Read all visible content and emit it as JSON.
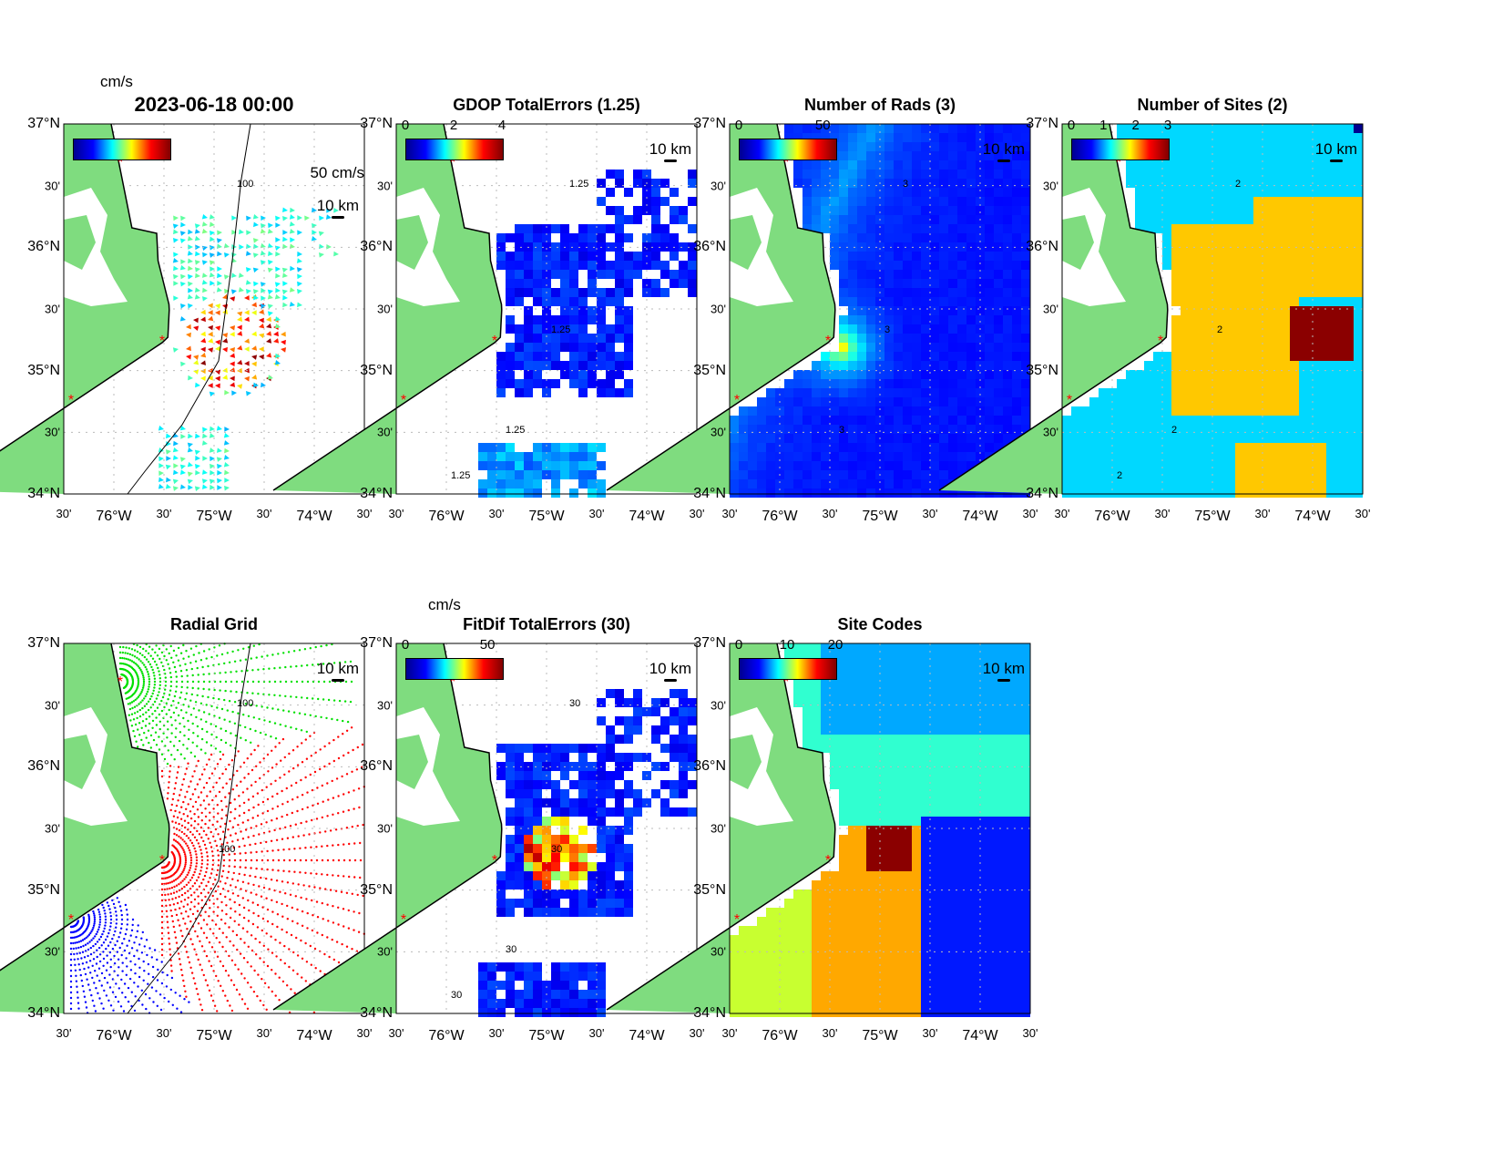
{
  "figure_title": "2023-06-18 00:00",
  "axes": {
    "y_labels": [
      "37°N",
      "30'",
      "36°N",
      "30'",
      "35°N",
      "30'",
      "34°N"
    ],
    "x_labels": [
      "30'",
      "76°W",
      "30'",
      "75°W",
      "30'",
      "74°W",
      "30'"
    ]
  },
  "scale_label": "10 km",
  "panels": [
    {
      "id": "totals",
      "title": "2023-06-18 00:00",
      "unit": "cm/s",
      "vector_scale": "50 cm/s",
      "colorbar_ticks": [],
      "contour_labels": [
        "100"
      ]
    },
    {
      "id": "gdop",
      "title": "GDOP TotalErrors (1.25)",
      "colorbar_ticks": [
        "0",
        "2",
        "4"
      ],
      "contour_labels": [
        "1.25",
        "1.25",
        "1.25",
        "1.25"
      ]
    },
    {
      "id": "nrads",
      "title": "Number of Rads (3)",
      "colorbar_ticks": [
        "0",
        "50"
      ],
      "contour_labels": [
        "3",
        "3",
        "3"
      ]
    },
    {
      "id": "nsites",
      "title": "Number of Sites (2)",
      "colorbar_ticks": [
        "0",
        "1",
        "2",
        "3"
      ],
      "contour_labels": [
        "2",
        "2",
        "2",
        "2"
      ]
    },
    {
      "id": "radgrid",
      "title": "Radial Grid",
      "colorbar_ticks": [],
      "contour_labels": [
        "100",
        "100"
      ]
    },
    {
      "id": "fitdif",
      "title": "FitDif TotalErrors (30)",
      "unit": "cm/s",
      "colorbar_ticks": [
        "0",
        "50"
      ],
      "contour_labels": [
        "30",
        "30",
        "30",
        "30"
      ]
    },
    {
      "id": "sitecodes",
      "title": "Site Codes",
      "colorbar_ticks": [
        "0",
        "10",
        "20"
      ],
      "contour_labels": []
    }
  ],
  "colors": {
    "land": "#7fdc7f",
    "site_marker": "#ff0000",
    "grid": "#bbbbbb"
  }
}
